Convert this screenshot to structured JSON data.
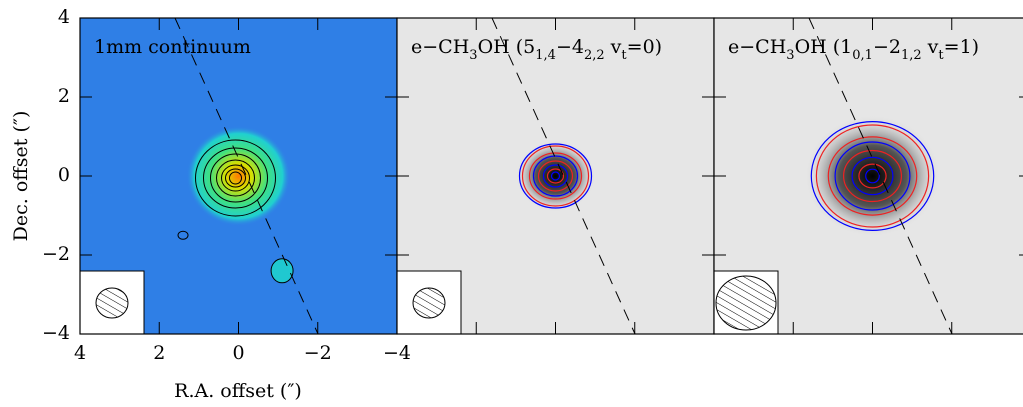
{
  "chart_data": {
    "type": "image",
    "x_label": "R.A. offset (″)",
    "y_label": "Dec. offset (″)",
    "xlim": [
      4,
      -4
    ],
    "ylim": [
      -4,
      4
    ],
    "xticks": [
      4,
      2,
      0,
      {
        "value": -2,
        "label": "−2"
      },
      {
        "value": -4,
        "label": "−4"
      }
    ],
    "yticks": [
      {
        "value": -4,
        "label": "−4"
      },
      {
        "value": -2,
        "label": "−2"
      },
      0,
      2,
      4
    ],
    "panels": [
      {
        "title": [
          "1mm continuum"
        ],
        "background": "#2f7fe6"
      },
      {
        "title": [
          "e−CH",
          "3",
          "OH (5",
          "1,4",
          "−4",
          "2,2",
          " v",
          "t",
          "=0)"
        ],
        "background": "#e6e6e6"
      },
      {
        "title": [
          "e−CH",
          "3",
          "OH (1",
          "0,1",
          "−2",
          "1,2",
          " v",
          "t",
          "=1)"
        ],
        "background": "#e6e6e6"
      }
    ]
  }
}
